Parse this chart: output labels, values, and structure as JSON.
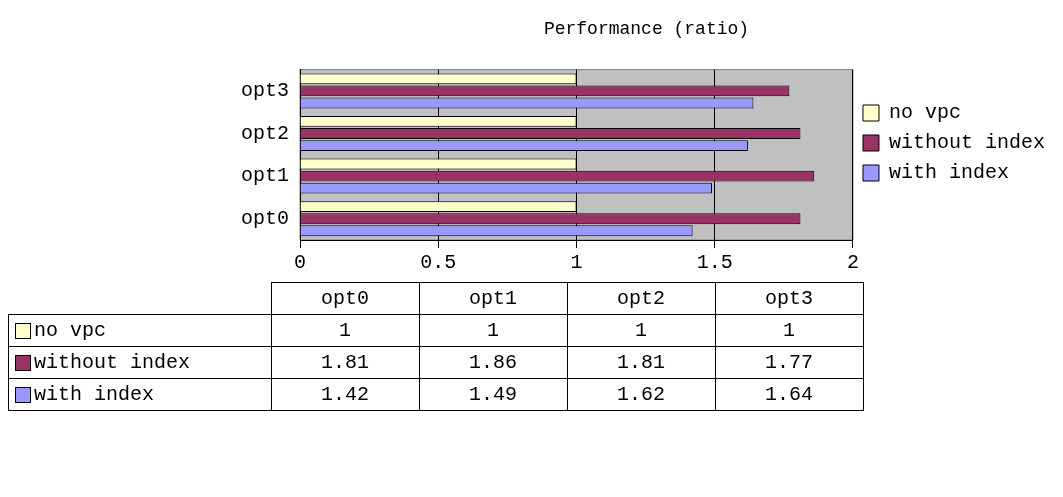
{
  "chart_data": [
    {
      "type": "bar",
      "orientation": "horizontal",
      "title": "Performance (ratio)",
      "categories": [
        "opt3",
        "opt2",
        "opt1",
        "opt0"
      ],
      "series": [
        {
          "name": "no vpc",
          "color": "#ffffcc",
          "values": [
            1,
            1,
            1,
            1
          ]
        },
        {
          "name": "without index",
          "color": "#993366",
          "values": [
            1.77,
            1.81,
            1.86,
            1.81
          ]
        },
        {
          "name": "with index",
          "color": "#9999ff",
          "values": [
            1.64,
            1.62,
            1.49,
            1.42
          ]
        }
      ],
      "xlim": [
        0,
        2
      ],
      "xticks": [
        0,
        {
          "value": 0.5,
          "label": "0.5"
        },
        1,
        {
          "value": 1.5,
          "label": "1.5"
        },
        2
      ],
      "grid": "x",
      "legend": "right"
    },
    {
      "type": "other",
      "categories": [
        "opt0",
        "opt1",
        "opt2",
        "opt3"
      ],
      "y_categories": [
        "no vpc",
        "without index",
        "with index"
      ],
      "cell_labels": [
        [
          "1",
          "1",
          "1",
          "1"
        ],
        [
          "1.81",
          "1.86",
          "1.81",
          "1.77"
        ],
        [
          "1.42",
          "1.49",
          "1.62",
          "1.64"
        ]
      ]
    }
  ]
}
